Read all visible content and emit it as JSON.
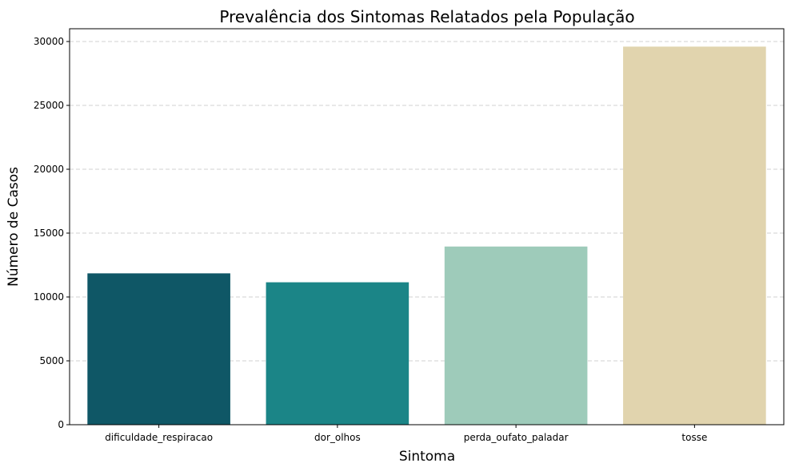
{
  "chart_data": {
    "type": "bar",
    "title": "Prevalência dos Sintomas Relatados pela População",
    "xlabel": "Sintoma",
    "ylabel": "Número de Casos",
    "categories": [
      "dificuldade_respiracao",
      "dor_olhos",
      "perda_oufato_paladar",
      "tosse"
    ],
    "values": [
      11850,
      11150,
      13950,
      29600
    ],
    "colors": [
      "#0f5766",
      "#1b8587",
      "#9ecbba",
      "#e1d4ae"
    ],
    "ylim": [
      0,
      31000
    ],
    "yticks": [
      0,
      5000,
      10000,
      15000,
      20000,
      25000,
      30000
    ],
    "grid": "y-dashed",
    "legend": "none"
  }
}
